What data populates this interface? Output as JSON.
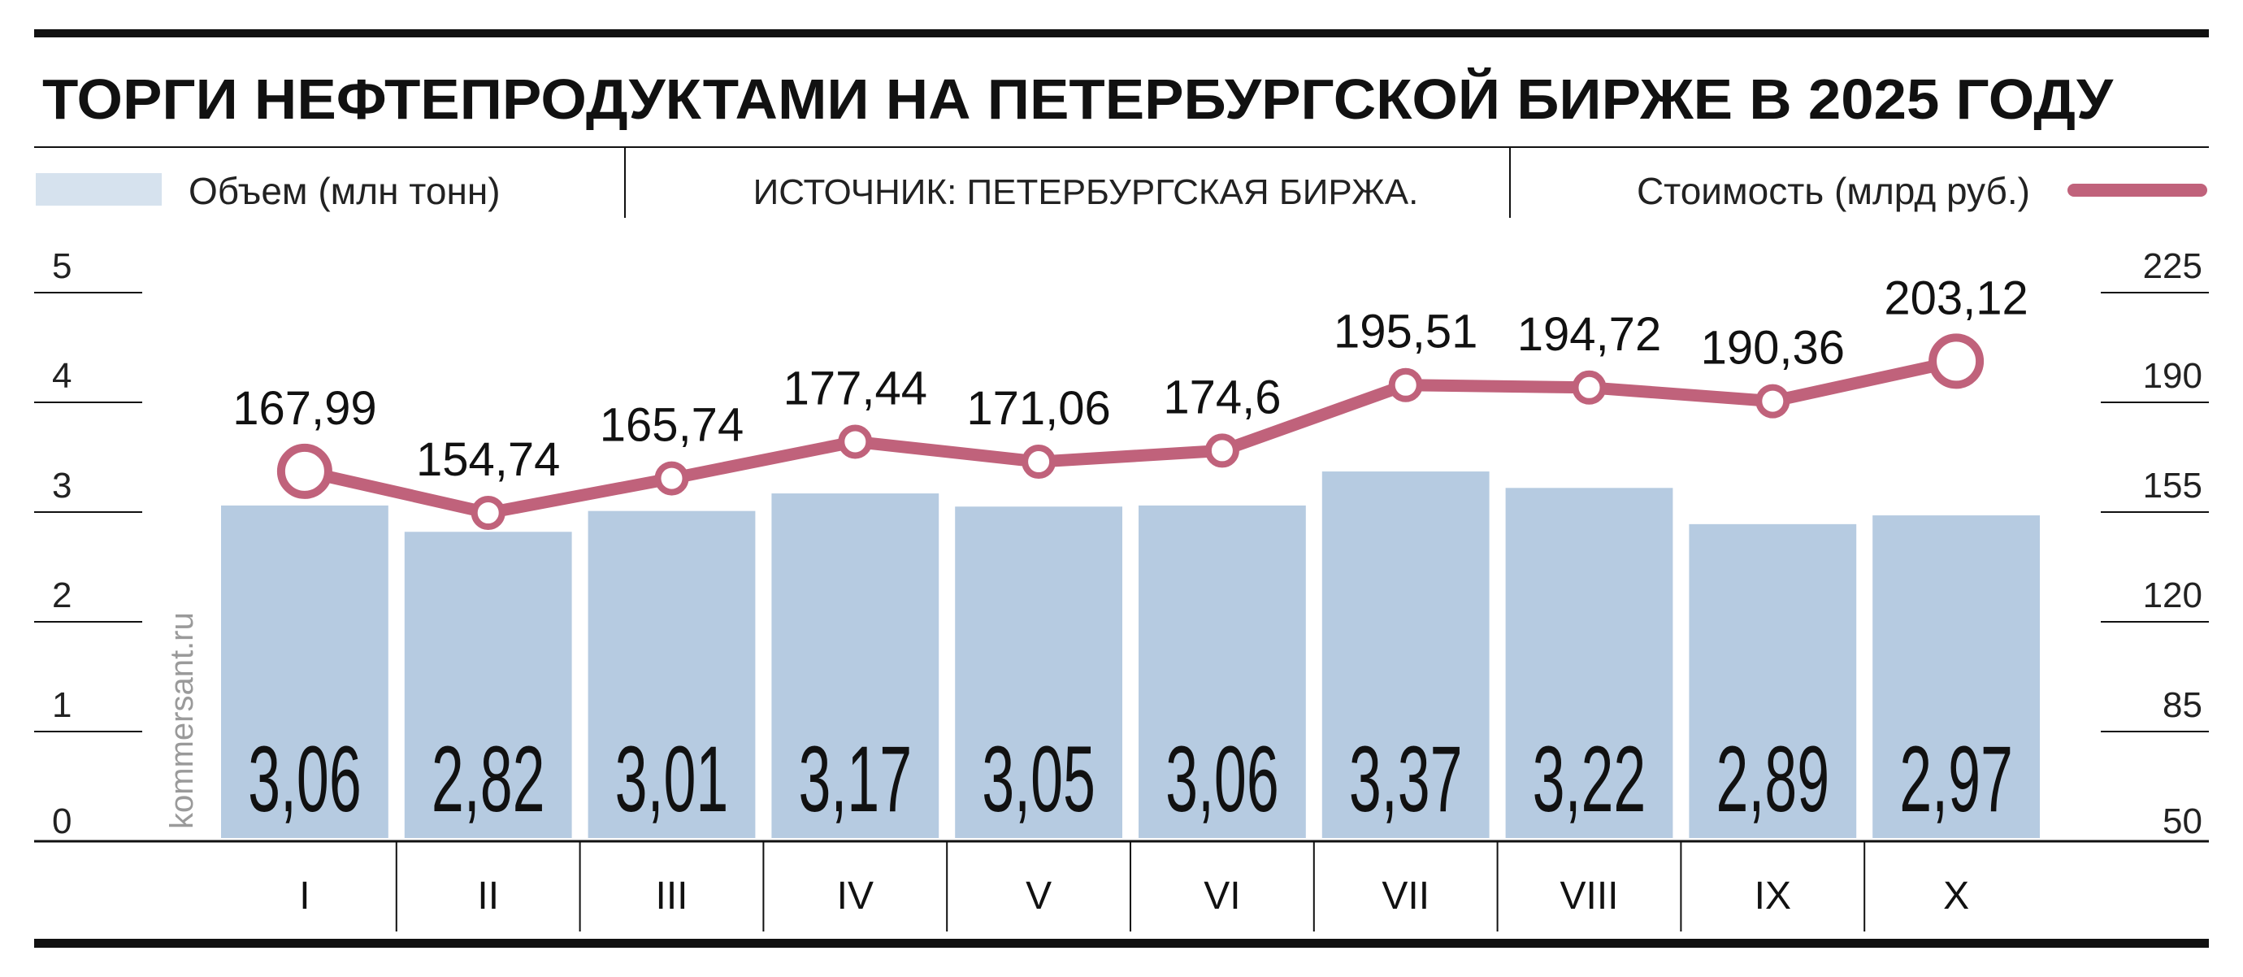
{
  "title": "ТОРГИ НЕФТЕПРОДУКТАМИ НА ПЕТЕРБУРГСКОЙ БИРЖЕ В 2025 ГОДУ",
  "source": "ИСТОЧНИК: ПЕТЕРБУРГСКАЯ БИРЖА.",
  "watermark": "kommersant.ru",
  "colors": {
    "bar": "#b6cbe1",
    "line": "#c0627b",
    "text": "#111111"
  },
  "chart_data": {
    "type": "bar",
    "categories": [
      "I",
      "II",
      "III",
      "IV",
      "V",
      "VI",
      "VII",
      "VIII",
      "IX",
      "X"
    ],
    "series": [
      {
        "name": "Объем (млн тонн)",
        "type": "bar",
        "axis": "left",
        "values": [
          3.06,
          2.82,
          3.01,
          3.17,
          3.05,
          3.06,
          3.37,
          3.22,
          2.89,
          2.97
        ],
        "labels": [
          "3,06",
          "2,82",
          "3,01",
          "3,17",
          "3,05",
          "3,06",
          "3,37",
          "3,22",
          "2,89",
          "2,97"
        ]
      },
      {
        "name": "Стоимость (млрд руб.)",
        "type": "line",
        "axis": "right",
        "values": [
          167.99,
          154.74,
          165.74,
          177.44,
          171.06,
          174.6,
          195.51,
          194.72,
          190.36,
          203.12
        ],
        "labels": [
          "167,99",
          "154,74",
          "165,74",
          "177,44",
          "171,06",
          "174,6",
          "195,51",
          "194,72",
          "190,36",
          "203,12"
        ]
      }
    ],
    "y_left": {
      "range": [
        0,
        5
      ],
      "ticks": [
        "0",
        "1",
        "2",
        "3",
        "4",
        "5"
      ]
    },
    "y_right": {
      "range": [
        50,
        225
      ],
      "ticks": [
        "50",
        "85",
        "120",
        "155",
        "190",
        "225"
      ]
    },
    "legend": "top"
  }
}
